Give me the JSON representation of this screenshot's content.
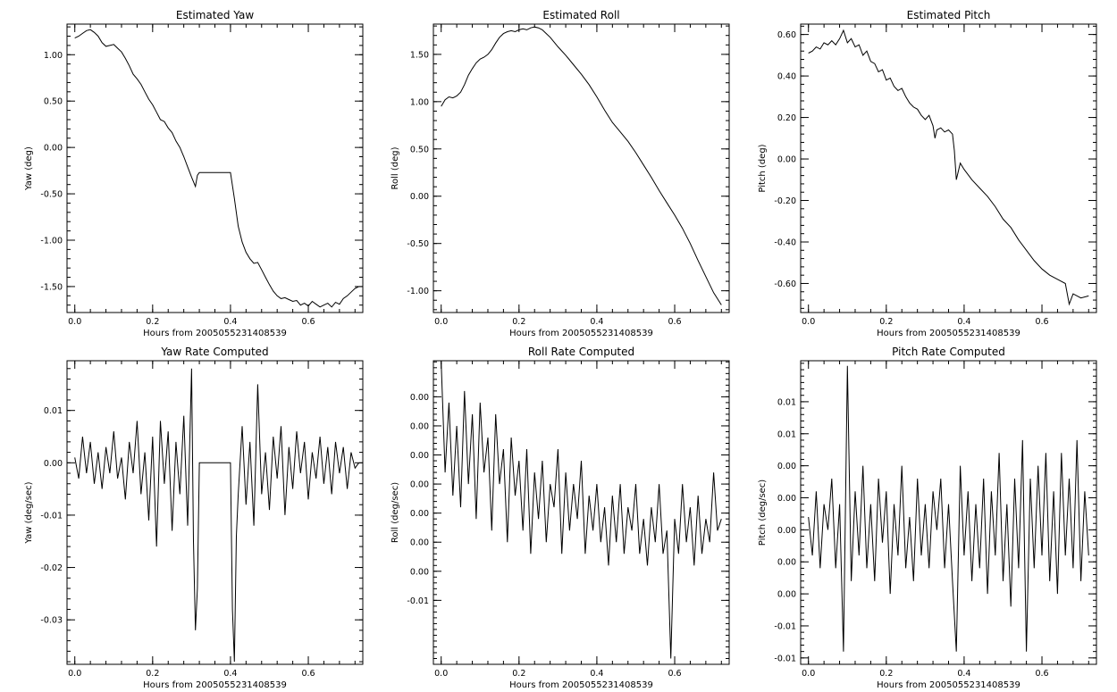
{
  "chart_data": [
    {
      "type": "line",
      "title": "Estimated Yaw",
      "xlabel": "Hours from 2005055231408539",
      "ylabel": "Yaw (deg)",
      "xlim": [
        -0.02,
        0.74
      ],
      "ylim": [
        -1.78,
        1.33
      ],
      "xticks": [
        0.0,
        0.2,
        0.4,
        0.6
      ],
      "xtick_labels": [
        "0.0",
        "0.2",
        "0.4",
        "0.6"
      ],
      "yticks": [
        -1.5,
        -1.0,
        -0.5,
        0.0,
        0.5,
        1.0
      ],
      "ytick_labels": [
        "-1.50",
        "-1.00",
        "-0.50",
        "0.00",
        "0.50",
        "1.00"
      ],
      "series": [
        {
          "x": [
            0.0,
            0.01,
            0.02,
            0.03,
            0.04,
            0.05,
            0.06,
            0.07,
            0.08,
            0.09,
            0.1,
            0.11,
            0.12,
            0.13,
            0.14,
            0.15,
            0.16,
            0.17,
            0.18,
            0.19,
            0.2,
            0.21,
            0.22,
            0.23,
            0.24,
            0.25,
            0.26,
            0.27,
            0.28,
            0.29,
            0.3,
            0.31,
            0.315,
            0.32,
            0.33,
            0.34,
            0.35,
            0.36,
            0.37,
            0.38,
            0.39,
            0.4,
            0.41,
            0.42,
            0.43,
            0.44,
            0.45,
            0.46,
            0.47,
            0.48,
            0.49,
            0.5,
            0.51,
            0.52,
            0.53,
            0.54,
            0.55,
            0.56,
            0.57,
            0.58,
            0.59,
            0.6,
            0.61,
            0.62,
            0.63,
            0.64,
            0.65,
            0.66,
            0.67,
            0.68,
            0.69,
            0.7,
            0.71,
            0.72,
            0.73
          ],
          "y": [
            1.18,
            1.2,
            1.23,
            1.26,
            1.27,
            1.24,
            1.2,
            1.13,
            1.09,
            1.1,
            1.11,
            1.07,
            1.03,
            0.96,
            0.88,
            0.79,
            0.74,
            0.68,
            0.6,
            0.52,
            0.46,
            0.38,
            0.3,
            0.28,
            0.21,
            0.16,
            0.07,
            0.0,
            -0.1,
            -0.21,
            -0.32,
            -0.42,
            -0.3,
            -0.27,
            -0.27,
            -0.27,
            -0.27,
            -0.27,
            -0.27,
            -0.27,
            -0.27,
            -0.27,
            -0.55,
            -0.85,
            -1.02,
            -1.13,
            -1.2,
            -1.25,
            -1.24,
            -1.32,
            -1.4,
            -1.48,
            -1.55,
            -1.6,
            -1.63,
            -1.62,
            -1.64,
            -1.66,
            -1.65,
            -1.7,
            -1.68,
            -1.71,
            -1.66,
            -1.69,
            -1.72,
            -1.7,
            -1.68,
            -1.72,
            -1.67,
            -1.69,
            -1.63,
            -1.6,
            -1.56,
            -1.52,
            -1.5
          ]
        }
      ]
    },
    {
      "type": "line",
      "title": "Estimated Roll",
      "xlabel": "Hours from 2005055231408539",
      "ylabel": "Roll (deg)",
      "xlim": [
        -0.02,
        0.74
      ],
      "ylim": [
        -1.23,
        1.82
      ],
      "xticks": [
        0.0,
        0.2,
        0.4,
        0.6
      ],
      "xtick_labels": [
        "0.0",
        "0.2",
        "0.4",
        "0.6"
      ],
      "yticks": [
        -1.0,
        -0.5,
        0.0,
        0.5,
        1.0,
        1.5
      ],
      "ytick_labels": [
        "-1.00",
        "-0.50",
        "0.00",
        "0.50",
        "1.00",
        "1.50"
      ],
      "series": [
        {
          "x": [
            0.0,
            0.01,
            0.02,
            0.03,
            0.04,
            0.05,
            0.06,
            0.07,
            0.08,
            0.09,
            0.1,
            0.11,
            0.12,
            0.13,
            0.14,
            0.15,
            0.16,
            0.17,
            0.18,
            0.19,
            0.2,
            0.21,
            0.22,
            0.23,
            0.24,
            0.25,
            0.26,
            0.27,
            0.28,
            0.29,
            0.3,
            0.32,
            0.34,
            0.36,
            0.38,
            0.4,
            0.42,
            0.44,
            0.46,
            0.48,
            0.5,
            0.52,
            0.54,
            0.56,
            0.58,
            0.6,
            0.62,
            0.64,
            0.66,
            0.68,
            0.7,
            0.72
          ],
          "y": [
            0.95,
            1.02,
            1.05,
            1.04,
            1.06,
            1.1,
            1.18,
            1.28,
            1.35,
            1.41,
            1.45,
            1.47,
            1.5,
            1.55,
            1.62,
            1.68,
            1.72,
            1.74,
            1.75,
            1.74,
            1.76,
            1.77,
            1.76,
            1.78,
            1.79,
            1.78,
            1.76,
            1.72,
            1.68,
            1.63,
            1.58,
            1.49,
            1.39,
            1.29,
            1.18,
            1.05,
            0.91,
            0.78,
            0.68,
            0.58,
            0.46,
            0.33,
            0.2,
            0.06,
            -0.07,
            -0.2,
            -0.34,
            -0.5,
            -0.68,
            -0.85,
            -1.02,
            -1.15
          ]
        }
      ]
    },
    {
      "type": "line",
      "title": "Estimated Pitch",
      "xlabel": "Hours from 2005055231408539",
      "ylabel": "Pitch (deg)",
      "xlim": [
        -0.02,
        0.74
      ],
      "ylim": [
        -0.74,
        0.65
      ],
      "xticks": [
        0.0,
        0.2,
        0.4,
        0.6
      ],
      "xtick_labels": [
        "0.0",
        "0.2",
        "0.4",
        "0.6"
      ],
      "yticks": [
        -0.6,
        -0.4,
        -0.2,
        0.0,
        0.2,
        0.4,
        0.6
      ],
      "ytick_labels": [
        "-0.60",
        "-0.40",
        "-0.20",
        "0.00",
        "0.20",
        "0.40",
        "0.60"
      ],
      "series": [
        {
          "x": [
            0.0,
            0.01,
            0.02,
            0.03,
            0.04,
            0.05,
            0.06,
            0.07,
            0.08,
            0.09,
            0.1,
            0.11,
            0.12,
            0.13,
            0.14,
            0.15,
            0.16,
            0.17,
            0.18,
            0.19,
            0.2,
            0.21,
            0.22,
            0.23,
            0.24,
            0.25,
            0.26,
            0.27,
            0.28,
            0.29,
            0.3,
            0.31,
            0.32,
            0.325,
            0.33,
            0.34,
            0.35,
            0.36,
            0.37,
            0.375,
            0.38,
            0.39,
            0.4,
            0.42,
            0.44,
            0.46,
            0.48,
            0.5,
            0.52,
            0.54,
            0.56,
            0.58,
            0.6,
            0.62,
            0.64,
            0.66,
            0.67,
            0.68,
            0.7,
            0.72
          ],
          "y": [
            0.51,
            0.52,
            0.54,
            0.53,
            0.56,
            0.55,
            0.57,
            0.55,
            0.58,
            0.62,
            0.56,
            0.58,
            0.54,
            0.55,
            0.5,
            0.52,
            0.47,
            0.46,
            0.42,
            0.43,
            0.38,
            0.39,
            0.35,
            0.33,
            0.34,
            0.3,
            0.27,
            0.25,
            0.24,
            0.21,
            0.19,
            0.21,
            0.16,
            0.1,
            0.14,
            0.15,
            0.13,
            0.14,
            0.12,
            0.04,
            -0.1,
            -0.02,
            -0.05,
            -0.1,
            -0.14,
            -0.18,
            -0.23,
            -0.29,
            -0.33,
            -0.39,
            -0.44,
            -0.49,
            -0.53,
            -0.56,
            -0.58,
            -0.6,
            -0.7,
            -0.65,
            -0.67,
            -0.66
          ]
        }
      ]
    },
    {
      "type": "line",
      "title": "Yaw Rate Computed",
      "xlabel": "Hours from 2005055231408539",
      "ylabel": "Yaw (deg/sec)",
      "xlim": [
        -0.02,
        0.74
      ],
      "ylim": [
        -0.0385,
        0.0195
      ],
      "xticks": [
        0.0,
        0.2,
        0.4,
        0.6
      ],
      "xtick_labels": [
        "0.0",
        "0.2",
        "0.4",
        "0.6"
      ],
      "yticks": [
        -0.03,
        -0.02,
        -0.01,
        0.0,
        0.01
      ],
      "ytick_labels": [
        "-0.03",
        "-0.02",
        "-0.01",
        "0.00",
        "0.01"
      ],
      "series": [
        {
          "x": [
            0.0,
            0.01,
            0.02,
            0.03,
            0.04,
            0.05,
            0.06,
            0.07,
            0.08,
            0.09,
            0.1,
            0.11,
            0.12,
            0.13,
            0.14,
            0.15,
            0.16,
            0.17,
            0.18,
            0.19,
            0.2,
            0.21,
            0.22,
            0.23,
            0.24,
            0.25,
            0.26,
            0.27,
            0.28,
            0.29,
            0.3,
            0.305,
            0.31,
            0.315,
            0.32,
            0.33,
            0.34,
            0.35,
            0.36,
            0.37,
            0.38,
            0.39,
            0.4,
            0.405,
            0.41,
            0.415,
            0.42,
            0.43,
            0.44,
            0.45,
            0.46,
            0.47,
            0.48,
            0.49,
            0.5,
            0.51,
            0.52,
            0.53,
            0.54,
            0.55,
            0.56,
            0.57,
            0.58,
            0.59,
            0.6,
            0.61,
            0.62,
            0.63,
            0.64,
            0.65,
            0.66,
            0.67,
            0.68,
            0.69,
            0.7,
            0.71,
            0.72,
            0.73
          ],
          "y": [
            0.001,
            -0.003,
            0.005,
            -0.002,
            0.004,
            -0.004,
            0.002,
            -0.005,
            0.003,
            -0.002,
            0.006,
            -0.003,
            0.001,
            -0.007,
            0.004,
            -0.002,
            0.008,
            -0.006,
            0.002,
            -0.011,
            0.005,
            -0.016,
            0.008,
            -0.004,
            0.006,
            -0.013,
            0.004,
            -0.006,
            0.009,
            -0.012,
            0.018,
            -0.015,
            -0.032,
            -0.024,
            0.0,
            0.0,
            0.0,
            0.0,
            0.0,
            0.0,
            0.0,
            0.0,
            0.0,
            -0.028,
            -0.038,
            -0.014,
            -0.006,
            0.007,
            -0.008,
            0.004,
            -0.012,
            0.015,
            -0.006,
            0.002,
            -0.009,
            0.005,
            -0.003,
            0.007,
            -0.01,
            0.003,
            -0.005,
            0.006,
            -0.002,
            0.004,
            -0.007,
            0.002,
            -0.003,
            0.005,
            -0.004,
            0.003,
            -0.006,
            0.004,
            -0.002,
            0.003,
            -0.005,
            0.002,
            -0.001,
            0.0
          ]
        }
      ]
    },
    {
      "type": "line",
      "title": "Roll Rate Computed",
      "xlabel": "Hours from 2005055231408539",
      "ylabel": "Roll (deg/sec)",
      "xlim": [
        -0.02,
        0.74
      ],
      "ylim": [
        -0.0155,
        0.0106
      ],
      "xticks": [
        0.0,
        0.2,
        0.4,
        0.6
      ],
      "xtick_labels": [
        "0.0",
        "0.2",
        "0.4",
        "0.6"
      ],
      "yticks": [
        -0.01,
        -0.0075,
        -0.005,
        -0.0025,
        0.0,
        0.0025,
        0.005,
        0.0075
      ],
      "ytick_labels": [
        "-0.01",
        "0.00",
        "0.00",
        "0.00",
        "0.00",
        "0.00",
        "0.00",
        "0.00"
      ],
      "series": [
        {
          "x": [
            0.0,
            0.01,
            0.02,
            0.03,
            0.04,
            0.05,
            0.06,
            0.07,
            0.08,
            0.09,
            0.1,
            0.11,
            0.12,
            0.13,
            0.14,
            0.15,
            0.16,
            0.17,
            0.18,
            0.19,
            0.2,
            0.21,
            0.22,
            0.23,
            0.24,
            0.25,
            0.26,
            0.27,
            0.28,
            0.29,
            0.3,
            0.31,
            0.32,
            0.33,
            0.34,
            0.35,
            0.36,
            0.37,
            0.38,
            0.39,
            0.4,
            0.41,
            0.42,
            0.43,
            0.44,
            0.45,
            0.46,
            0.47,
            0.48,
            0.49,
            0.5,
            0.51,
            0.52,
            0.53,
            0.54,
            0.55,
            0.56,
            0.57,
            0.58,
            0.59,
            0.6,
            0.61,
            0.62,
            0.63,
            0.64,
            0.65,
            0.66,
            0.67,
            0.68,
            0.69,
            0.7,
            0.71,
            0.72
          ],
          "y": [
            0.0105,
            0.001,
            0.007,
            -0.001,
            0.005,
            -0.002,
            0.008,
            0.0,
            0.006,
            -0.003,
            0.007,
            0.001,
            0.004,
            -0.004,
            0.006,
            0.0,
            0.003,
            -0.005,
            0.004,
            -0.001,
            0.002,
            -0.004,
            0.003,
            -0.006,
            0.001,
            -0.003,
            0.002,
            -0.005,
            0.0,
            -0.002,
            0.003,
            -0.006,
            0.001,
            -0.004,
            0.0,
            -0.003,
            0.002,
            -0.006,
            -0.001,
            -0.004,
            0.0,
            -0.005,
            -0.002,
            -0.007,
            -0.001,
            -0.005,
            0.0,
            -0.006,
            -0.002,
            -0.004,
            0.0,
            -0.006,
            -0.003,
            -0.007,
            -0.002,
            -0.005,
            0.0,
            -0.006,
            -0.004,
            -0.015,
            -0.003,
            -0.006,
            0.0,
            -0.005,
            -0.002,
            -0.007,
            -0.001,
            -0.006,
            -0.003,
            -0.005,
            0.001,
            -0.004,
            -0.003
          ]
        }
      ]
    },
    {
      "type": "line",
      "title": "Pitch Rate Computed",
      "xlabel": "Hours from 2005055231408539",
      "ylabel": "Pitch (deg/sec)",
      "xlim": [
        -0.02,
        0.74
      ],
      "ylim": [
        -0.0105,
        0.0132
      ],
      "xticks": [
        0.0,
        0.2,
        0.4,
        0.6
      ],
      "xtick_labels": [
        "0.0",
        "0.2",
        "0.4",
        "0.6"
      ],
      "yticks": [
        -0.01,
        -0.0075,
        -0.005,
        -0.0025,
        0.0,
        0.0025,
        0.005,
        0.0075,
        0.01
      ],
      "ytick_labels": [
        "-0.01",
        "-0.01",
        "0.00",
        "0.00",
        "0.00",
        "0.00",
        "0.00",
        "0.01",
        "0.01"
      ],
      "series": [
        {
          "x": [
            0.0,
            0.01,
            0.02,
            0.03,
            0.04,
            0.05,
            0.06,
            0.07,
            0.08,
            0.09,
            0.1,
            0.11,
            0.12,
            0.13,
            0.14,
            0.15,
            0.16,
            0.17,
            0.18,
            0.19,
            0.2,
            0.21,
            0.22,
            0.23,
            0.24,
            0.25,
            0.26,
            0.27,
            0.28,
            0.29,
            0.3,
            0.31,
            0.32,
            0.33,
            0.34,
            0.35,
            0.36,
            0.37,
            0.38,
            0.39,
            0.4,
            0.41,
            0.42,
            0.43,
            0.44,
            0.45,
            0.46,
            0.47,
            0.48,
            0.49,
            0.5,
            0.51,
            0.52,
            0.53,
            0.54,
            0.55,
            0.56,
            0.57,
            0.58,
            0.59,
            0.6,
            0.61,
            0.62,
            0.63,
            0.64,
            0.65,
            0.66,
            0.67,
            0.68,
            0.69,
            0.7,
            0.71,
            0.72
          ],
          "y": [
            0.001,
            -0.002,
            0.003,
            -0.003,
            0.002,
            0.0,
            0.004,
            -0.003,
            0.002,
            -0.0095,
            0.0128,
            -0.004,
            0.003,
            -0.002,
            0.005,
            -0.003,
            0.002,
            -0.004,
            0.004,
            -0.001,
            0.003,
            -0.005,
            0.002,
            -0.002,
            0.005,
            -0.003,
            0.001,
            -0.004,
            0.004,
            -0.002,
            0.002,
            -0.003,
            0.003,
            0.0,
            0.004,
            -0.003,
            0.002,
            -0.004,
            -0.0095,
            0.005,
            -0.002,
            0.003,
            -0.004,
            0.002,
            -0.003,
            0.004,
            -0.005,
            0.003,
            -0.002,
            0.006,
            -0.004,
            0.002,
            -0.006,
            0.004,
            -0.003,
            0.007,
            -0.0095,
            0.004,
            -0.003,
            0.005,
            -0.002,
            0.006,
            -0.004,
            0.003,
            -0.005,
            0.006,
            -0.002,
            0.004,
            -0.003,
            0.007,
            -0.004,
            0.003,
            -0.002
          ]
        }
      ]
    }
  ]
}
